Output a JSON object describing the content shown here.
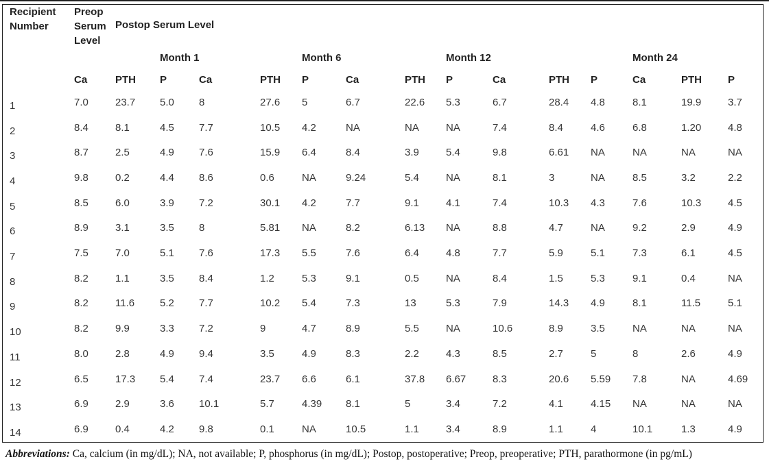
{
  "header": {
    "recipient": "Recipient Number",
    "preop": "Preop Serum Level",
    "postop": "Postop Serum Level",
    "months": [
      "Month 1",
      "Month 6",
      "Month 12",
      "Month 24"
    ],
    "measures": [
      "Ca",
      "PTH",
      "P"
    ]
  },
  "rows": [
    {
      "recipient": "1",
      "preop": [
        "7.0",
        "23.7",
        "5.0"
      ],
      "month1": [
        "8",
        "27.6",
        "5"
      ],
      "month6": [
        "6.7",
        "22.6",
        "5.3"
      ],
      "month12": [
        "6.7",
        "28.4",
        "4.8"
      ],
      "month24": [
        "8.1",
        "19.9",
        "3.7"
      ]
    },
    {
      "recipient": "2",
      "preop": [
        "8.4",
        "8.1",
        "4.5"
      ],
      "month1": [
        "7.7",
        "10.5",
        "4.2"
      ],
      "month6": [
        "NA",
        "NA",
        "NA"
      ],
      "month12": [
        "7.4",
        "8.4",
        "4.6"
      ],
      "month24": [
        "6.8",
        "1.20",
        "4.8"
      ]
    },
    {
      "recipient": "3",
      "preop": [
        "8.7",
        "2.5",
        "4.9"
      ],
      "month1": [
        "7.6",
        "15.9",
        "6.4"
      ],
      "month6": [
        "8.4",
        "3.9",
        "5.4"
      ],
      "month12": [
        "9.8",
        "6.61",
        "NA"
      ],
      "month24": [
        "NA",
        "NA",
        "NA"
      ]
    },
    {
      "recipient": "4",
      "preop": [
        "9.8",
        "0.2",
        "4.4"
      ],
      "month1": [
        "8.6",
        "0.6",
        "NA"
      ],
      "month6": [
        "9.24",
        "5.4",
        "NA"
      ],
      "month12": [
        "8.1",
        "3",
        "NA"
      ],
      "month24": [
        "8.5",
        "3.2",
        "2.2"
      ]
    },
    {
      "recipient": "5",
      "preop": [
        "8.5",
        "6.0",
        "3.9"
      ],
      "month1": [
        "7.2",
        "30.1",
        "4.2"
      ],
      "month6": [
        "7.7",
        "9.1",
        "4.1"
      ],
      "month12": [
        "7.4",
        "10.3",
        "4.3"
      ],
      "month24": [
        "7.6",
        "10.3",
        "4.5"
      ]
    },
    {
      "recipient": "6",
      "preop": [
        "8.9",
        "3.1",
        "3.5"
      ],
      "month1": [
        "8",
        "5.81",
        "NA"
      ],
      "month6": [
        "8.2",
        "6.13",
        "NA"
      ],
      "month12": [
        "8.8",
        "4.7",
        "NA"
      ],
      "month24": [
        "9.2",
        "2.9",
        "4.9"
      ]
    },
    {
      "recipient": "7",
      "preop": [
        "7.5",
        "7.0",
        "5.1"
      ],
      "month1": [
        "7.6",
        "17.3",
        "5.5"
      ],
      "month6": [
        "7.6",
        "6.4",
        "4.8"
      ],
      "month12": [
        "7.7",
        "5.9",
        "5.1"
      ],
      "month24": [
        "7.3",
        "6.1",
        "4.5"
      ]
    },
    {
      "recipient": "8",
      "preop": [
        "8.2",
        "1.1",
        "3.5"
      ],
      "month1": [
        "8.4",
        "1.2",
        "5.3"
      ],
      "month6": [
        "9.1",
        "0.5",
        "NA"
      ],
      "month12": [
        "8.4",
        "1.5",
        "5.3"
      ],
      "month24": [
        "9.1",
        "0.4",
        "NA"
      ]
    },
    {
      "recipient": "9",
      "preop": [
        "8.2",
        "11.6",
        "5.2"
      ],
      "month1": [
        "7.7",
        "10.2",
        "5.4"
      ],
      "month6": [
        "7.3",
        "13",
        "5.3"
      ],
      "month12": [
        "7.9",
        "14.3",
        "4.9"
      ],
      "month24": [
        "8.1",
        "11.5",
        "5.1"
      ]
    },
    {
      "recipient": "10",
      "preop": [
        "8.2",
        "9.9",
        "3.3"
      ],
      "month1": [
        "7.2",
        "9",
        "4.7"
      ],
      "month6": [
        "8.9",
        "5.5",
        "NA"
      ],
      "month12": [
        "10.6",
        "8.9",
        "3.5"
      ],
      "month24": [
        "NA",
        "NA",
        "NA"
      ]
    },
    {
      "recipient": "11",
      "preop": [
        "8.0",
        "2.8",
        "4.9"
      ],
      "month1": [
        "9.4",
        "3.5",
        "4.9"
      ],
      "month6": [
        "8.3",
        "2.2",
        "4.3"
      ],
      "month12": [
        "8.5",
        "2.7",
        "5"
      ],
      "month24": [
        "8",
        "2.6",
        "4.9"
      ]
    },
    {
      "recipient": "12",
      "preop": [
        "6.5",
        "17.3",
        "5.4"
      ],
      "month1": [
        "7.4",
        "23.7",
        "6.6"
      ],
      "month6": [
        "6.1",
        "37.8",
        "6.67"
      ],
      "month12": [
        "8.3",
        "20.6",
        "5.59"
      ],
      "month24": [
        "7.8",
        "NA",
        "4.69"
      ]
    },
    {
      "recipient": "13",
      "preop": [
        "6.9",
        "2.9",
        "3.6"
      ],
      "month1": [
        "10.1",
        "5.7",
        "4.39"
      ],
      "month6": [
        "8.1",
        "5",
        "3.4"
      ],
      "month12": [
        "7.2",
        "4.1",
        "4.15"
      ],
      "month24": [
        "NA",
        "NA",
        "NA"
      ]
    },
    {
      "recipient": "14",
      "preop": [
        "6.9",
        "0.4",
        "4.2"
      ],
      "month1": [
        "9.8",
        "0.1",
        "NA"
      ],
      "month6": [
        "10.5",
        "1.1",
        "3.4"
      ],
      "month12": [
        "8.9",
        "1.1",
        "4"
      ],
      "month24": [
        "10.1",
        "1.3",
        "4.9"
      ]
    }
  ],
  "footnote": {
    "label": "Abbreviations:",
    "text": " Ca, calcium (in mg/dL); NA, not available; P, phosphorus (in mg/dL); Postop, postoperative; Preop, preoperative; PTH, parathormone (in pg/mL)"
  },
  "colors": {
    "border": "#202020",
    "header_text": "#222222",
    "body_text": "#373737"
  }
}
